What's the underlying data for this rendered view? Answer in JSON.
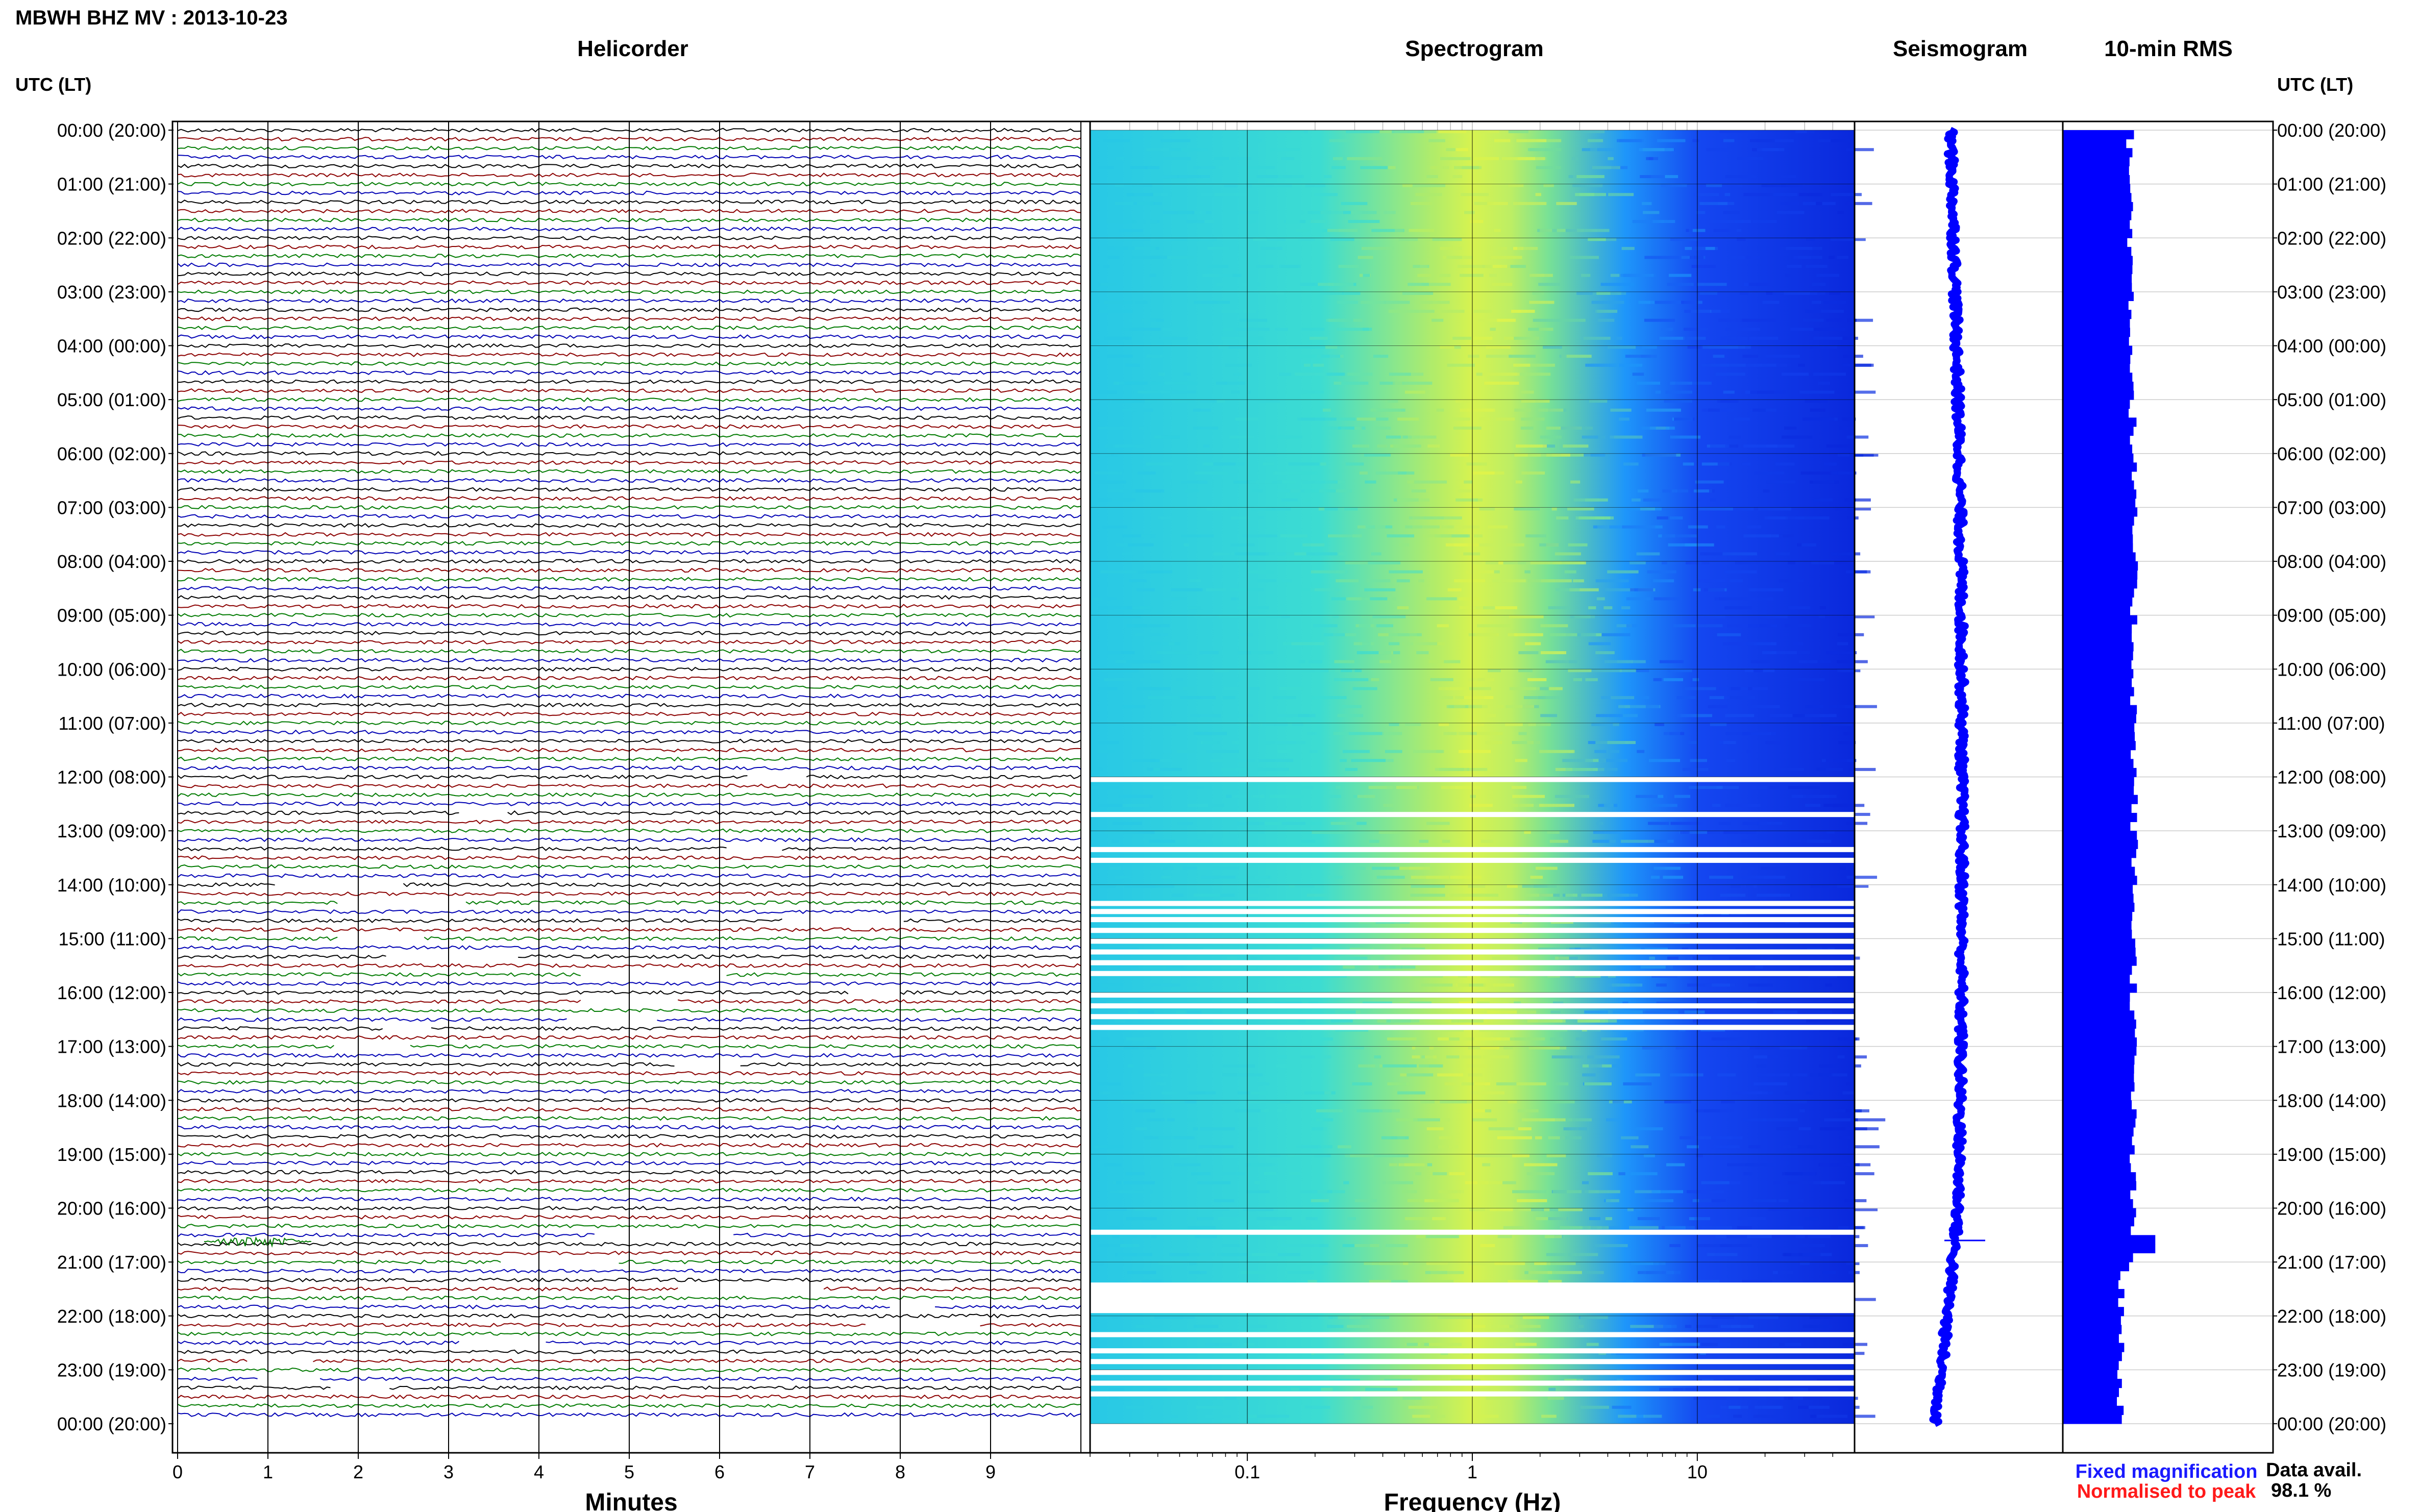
{
  "header": {
    "title": "MBWH BHZ MV : 2013-10-23"
  },
  "panels": {
    "helicorder": "Helicorder",
    "spectrogram": "Spectrogram",
    "seismogram": "Seismogram",
    "rms": "10-min RMS"
  },
  "axis": {
    "left_header": "UTC (LT)",
    "right_header": "UTC (LT)",
    "time_labels": [
      "00:00 (20:00)",
      "01:00 (21:00)",
      "02:00 (22:00)",
      "03:00 (23:00)",
      "04:00 (00:00)",
      "05:00 (01:00)",
      "06:00 (02:00)",
      "07:00 (03:00)",
      "08:00 (04:00)",
      "09:00 (05:00)",
      "10:00 (06:00)",
      "11:00 (07:00)",
      "12:00 (08:00)",
      "13:00 (09:00)",
      "14:00 (10:00)",
      "15:00 (11:00)",
      "16:00 (12:00)",
      "17:00 (13:00)",
      "18:00 (14:00)",
      "19:00 (15:00)",
      "20:00 (16:00)",
      "21:00 (17:00)",
      "22:00 (18:00)",
      "23:00 (19:00)",
      "00:00 (20:00)"
    ],
    "minutes_label": "Minutes",
    "minutes_ticks": [
      "0",
      "1",
      "2",
      "3",
      "4",
      "5",
      "6",
      "7",
      "8",
      "9"
    ],
    "frequency_label": "Frequency (Hz)",
    "frequency_ticks": [
      "0.1",
      "1",
      "10"
    ]
  },
  "legend": {
    "fixed": "Fixed magnification",
    "normalised": "Normalised to peak",
    "fixed_color": "#1a1aff",
    "normalised_color": "#ff1a1a"
  },
  "data_avail": {
    "label": "Data avail.",
    "value": "98.1 %"
  },
  "colors": {
    "trace_cycle": [
      "#000000",
      "#8b0000",
      "#007a00",
      "#0000b4"
    ],
    "spectrogram_low": "#2020ff",
    "spectrogram_high": "#f0ff40",
    "seismogram": "#0000ff",
    "rms_fill": "#0000ff"
  },
  "chart_data": {
    "type": "heatmap",
    "date": "2013-10-23",
    "station": "MBWH BHZ MV",
    "time_range_utc": [
      "00:00",
      "24:00"
    ],
    "helicorder": {
      "x_unit": "minutes",
      "xlim": [
        0,
        10
      ],
      "lines_per_hour": 6,
      "colors_cycle": [
        "black",
        "darkred",
        "green",
        "blue"
      ]
    },
    "spectrogram": {
      "x_scale": "log",
      "xlim_hz": [
        0.02,
        50
      ],
      "peak_energy_hz": [
        0.2,
        0.4
      ],
      "data_gaps_utc_hours": [
        12.0,
        12.65,
        13.3,
        13.5,
        14.3,
        14.45,
        14.6,
        14.8,
        15.0,
        15.2,
        15.4,
        15.6,
        16.0,
        16.2,
        16.4,
        16.6,
        20.4,
        21.4,
        21.5,
        22.3,
        22.6,
        22.8,
        23.0,
        23.2,
        23.4
      ]
    },
    "rms_10min": {
      "unit": "relative",
      "xlim": [
        0,
        1
      ],
      "peak_event_utc_hours": 20.6,
      "typical_value": 0.32,
      "peak_value": 0.36
    },
    "data_availability_percent": 98.1
  }
}
